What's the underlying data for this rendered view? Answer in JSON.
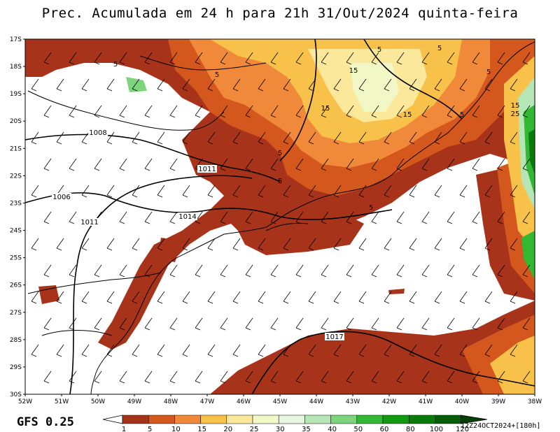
{
  "title": "Prec. Acumulada em 24 h para 21h 31/Out/2024 quinta-feira",
  "model_label": "GFS 0.25",
  "run_label": "12Z24OCT2024+[180h]",
  "lat_ticks": [
    "17S",
    "18S",
    "19S",
    "20S",
    "21S",
    "22S",
    "23S",
    "24S",
    "25S",
    "26S",
    "27S",
    "28S",
    "29S",
    "30S"
  ],
  "lon_ticks": [
    "52W",
    "51W",
    "50W",
    "49W",
    "48W",
    "47W",
    "46W",
    "45W",
    "44W",
    "43W",
    "42W",
    "41W",
    "40W",
    "39W",
    "38W"
  ],
  "legend": {
    "values": [
      "1",
      "5",
      "10",
      "15",
      "20",
      "25",
      "30",
      "35",
      "40",
      "50",
      "60",
      "80",
      "100",
      "120"
    ],
    "colors": [
      "#a7341a",
      "#d4571d",
      "#f08a3a",
      "#f7c14a",
      "#fbe89a",
      "#f2f7c6",
      "#e4f6e0",
      "#b6e6b6",
      "#7dd47d",
      "#33b833",
      "#129a12",
      "#0a7a0a",
      "#065d06",
      "#034003"
    ]
  },
  "isobar_labels": [
    "1008",
    "1006",
    "1011",
    "1011",
    "1014",
    "1017"
  ],
  "precip_labels": [
    "5",
    "5",
    "5",
    "5",
    "5",
    "5",
    "5",
    "5",
    "5",
    "15",
    "15",
    "15",
    "15",
    "25"
  ],
  "colors": {
    "land_outline": "#000000",
    "wind": "#000000"
  }
}
